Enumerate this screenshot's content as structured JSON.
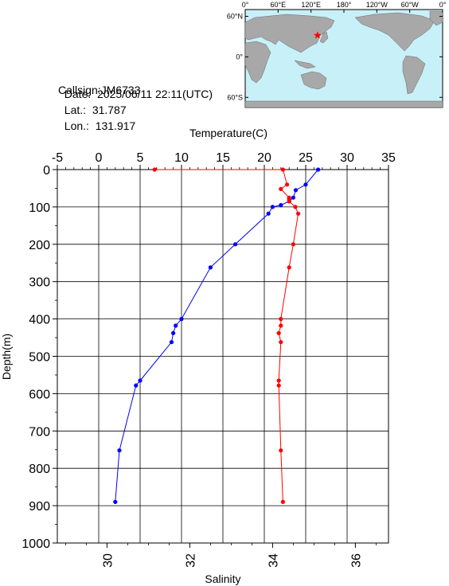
{
  "info": {
    "callsign": "Callsign:JM6733",
    "date_label": "Date:",
    "date_value": "2025/06/11 22:11(UTC)",
    "lat_label": "Lat.:",
    "lat_value": "31.787",
    "lon_label": "Lon.:",
    "lon_value": "131.917"
  },
  "map": {
    "lon_ticks": [
      "0°",
      "60°E",
      "120°E",
      "180°",
      "120°W",
      "60°W",
      "0°"
    ],
    "lat_ticks": [
      "60°N",
      "0°",
      "60°S"
    ],
    "ocean_color": "#c8f0f8",
    "land_color": "#a8a8a8",
    "marker": "star",
    "marker_color": "#ff0000",
    "marker_lat": 31.787,
    "marker_lon": 131.917
  },
  "chart_data": {
    "type": "line",
    "title": "",
    "top_axis": {
      "label": "Temperature(C)",
      "range": [
        -5,
        35
      ],
      "ticks": [
        -5,
        0,
        5,
        10,
        15,
        20,
        25,
        30,
        35
      ]
    },
    "bottom_axis": {
      "label": "Salinity",
      "range": [
        28.8,
        36.8
      ],
      "ticks": [
        30,
        32,
        34,
        36
      ]
    },
    "y_axis": {
      "label": "Depth(m)",
      "range": [
        0,
        1000
      ],
      "inverted": true,
      "ticks": [
        0,
        100,
        200,
        300,
        400,
        500,
        600,
        700,
        800,
        900,
        1000
      ]
    },
    "grid": true,
    "series": [
      {
        "quantity": "temperature",
        "color": "#0000ff",
        "points": [
          [
            26.5,
            0
          ],
          [
            25.0,
            40
          ],
          [
            23.8,
            55
          ],
          [
            23.5,
            75
          ],
          [
            23.0,
            85
          ],
          [
            22.0,
            95
          ],
          [
            21.0,
            100
          ],
          [
            20.5,
            118
          ],
          [
            16.5,
            200
          ],
          [
            13.5,
            262
          ],
          [
            10.0,
            400
          ],
          [
            9.3,
            418
          ],
          [
            9.0,
            438
          ],
          [
            8.8,
            462
          ],
          [
            5.0,
            565
          ],
          [
            4.5,
            578
          ],
          [
            2.5,
            752
          ],
          [
            2.0,
            890
          ]
        ]
      },
      {
        "quantity": "salinity",
        "color": "#ff0000",
        "points": [
          [
            31.15,
            0
          ],
          [
            34.25,
            0
          ],
          [
            34.35,
            40
          ],
          [
            34.2,
            52
          ],
          [
            34.4,
            75
          ],
          [
            34.4,
            80
          ],
          [
            34.4,
            85
          ],
          [
            34.55,
            100
          ],
          [
            34.62,
            118
          ],
          [
            34.5,
            200
          ],
          [
            34.4,
            262
          ],
          [
            34.2,
            400
          ],
          [
            34.2,
            418
          ],
          [
            34.15,
            438
          ],
          [
            34.2,
            462
          ],
          [
            34.15,
            565
          ],
          [
            34.15,
            578
          ],
          [
            34.2,
            752
          ],
          [
            34.25,
            890
          ]
        ]
      }
    ]
  }
}
